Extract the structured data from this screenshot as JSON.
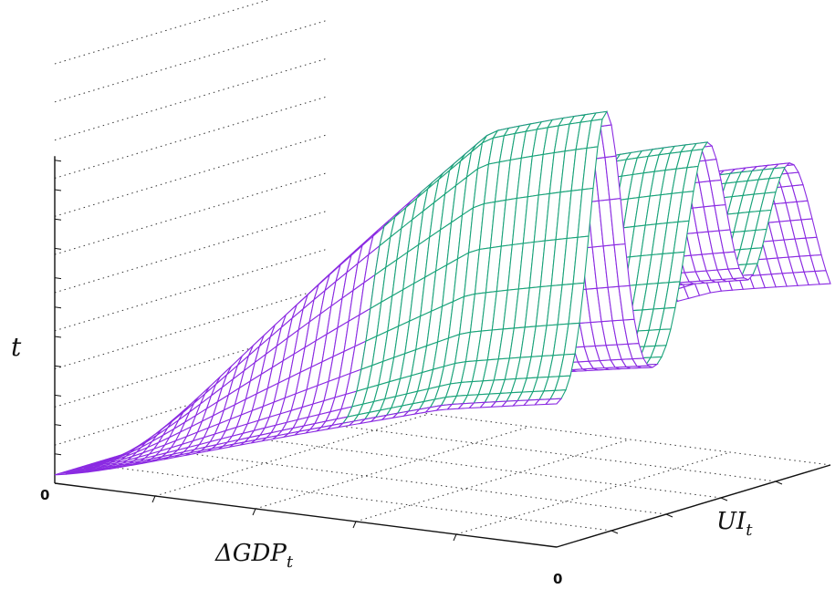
{
  "chart_data": {
    "type": "surface3d",
    "title": "",
    "axes": {
      "x": {
        "label": "ΔGDP",
        "label_sub": "t",
        "origin_tick": "0"
      },
      "y": {
        "label": "UI",
        "label_sub": "t",
        "origin_tick": "0"
      },
      "z": {
        "label": "t"
      }
    },
    "grid": true,
    "legend": "none",
    "colors": {
      "mesh_top": "#8b2be2",
      "mesh_under": "#1aa37a",
      "axis": "#111111",
      "grid": "#333333"
    },
    "surface": {
      "description_kind": "oscillating ridge along UI with three peaks, rising with ΔGDP",
      "peaks_along_UI": [
        0.18,
        0.55,
        0.85
      ],
      "peak_heights": [
        1.0,
        0.78,
        0.62
      ]
    }
  }
}
